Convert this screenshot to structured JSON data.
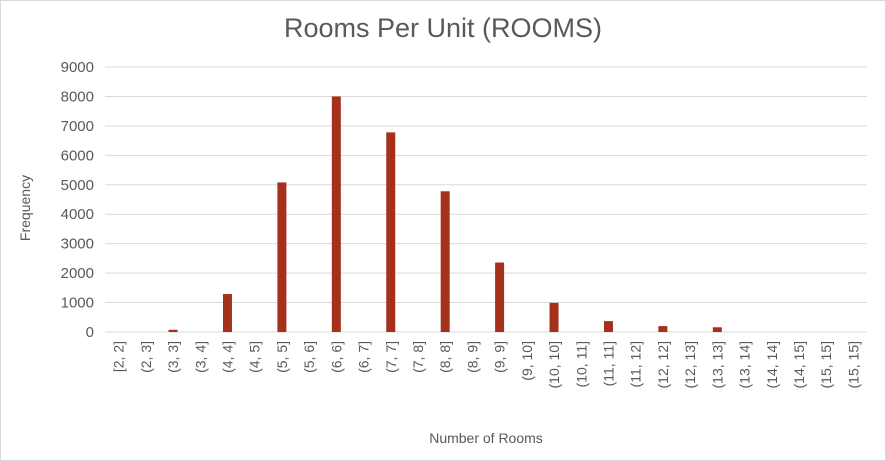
{
  "chart_data": {
    "type": "bar",
    "title": "Rooms Per Unit (ROOMS)",
    "xlabel": "Number of Rooms",
    "ylabel": "Frequency",
    "ylim": [
      0,
      9000
    ],
    "yticks": [
      0,
      1000,
      2000,
      3000,
      4000,
      5000,
      6000,
      7000,
      8000,
      9000
    ],
    "grid": true,
    "legend": "none",
    "bar_color": "#A5301B",
    "categories": [
      "[2, 2]",
      "(2, 3]",
      "(3, 3]",
      "(3, 4]",
      "(4, 4]",
      "(4, 5]",
      "(5, 5]",
      "(5, 6]",
      "(6, 6]",
      "(6, 7]",
      "(7, 7]",
      "(7, 8]",
      "(8, 8]",
      "(8, 9]",
      "(9, 9]",
      "(9, 10]",
      "(10, 10]",
      "(10, 11]",
      "(11, 11]",
      "(11, 12]",
      "(12, 12]",
      "(12, 13]",
      "(13, 13]",
      "(13, 14]",
      "(14, 14]",
      "(14, 15]",
      "(15, 15]",
      "(15, 15]"
    ],
    "values": [
      0,
      0,
      75,
      0,
      1290,
      0,
      5080,
      0,
      8000,
      0,
      6780,
      0,
      4780,
      0,
      2360,
      0,
      990,
      0,
      370,
      0,
      200,
      0,
      160,
      0,
      0,
      0,
      0,
      0
    ]
  }
}
